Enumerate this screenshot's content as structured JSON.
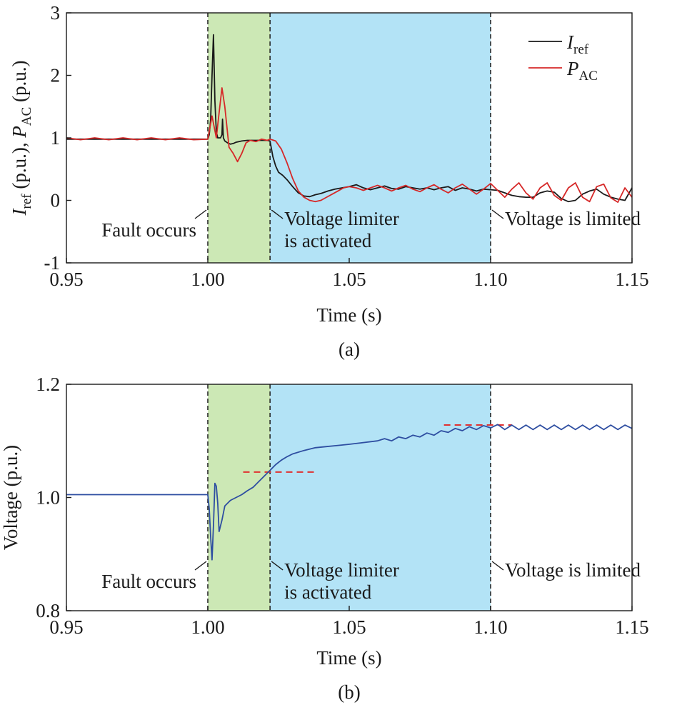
{
  "chart_data": [
    {
      "type": "line",
      "panel_label": "(a)",
      "xlabel": "Time (s)",
      "ylabel_parts": [
        {
          "text": "I",
          "style": "italic"
        },
        {
          "text": "ref",
          "style": "sub"
        },
        {
          "text": " (p.u.), ",
          "style": "normal"
        },
        {
          "text": "P",
          "style": "italic"
        },
        {
          "text": "AC",
          "style": "sub"
        },
        {
          "text": " (p.u.)",
          "style": "normal"
        }
      ],
      "xlim": [
        0.95,
        1.15
      ],
      "ylim": [
        -1,
        3
      ],
      "xticks": [
        "0.95",
        "1.00",
        "1.05",
        "1.10",
        "1.15"
      ],
      "yticks": [
        "-1",
        "0",
        "1",
        "2",
        "3"
      ],
      "xtick_values": [
        0.95,
        1.0,
        1.05,
        1.1,
        1.15
      ],
      "ytick_values": [
        -1,
        0,
        1,
        2,
        3
      ],
      "grid": false,
      "legend_position": "top-right",
      "regions": [
        {
          "x_start": 1.0,
          "x_end": 1.022,
          "color": "#cce8b5"
        },
        {
          "x_start": 1.022,
          "x_end": 1.1,
          "color": "#b3e3f6"
        }
      ],
      "vlines": [
        1.0,
        1.022,
        1.1
      ],
      "annotations": [
        {
          "lines": [
            "Fault occurs"
          ],
          "x": 1.0,
          "side": "left"
        },
        {
          "lines": [
            "Voltage limiter",
            "is activated"
          ],
          "x": 1.022,
          "side": "right"
        },
        {
          "lines": [
            "Voltage is limited"
          ],
          "x": 1.1,
          "side": "right"
        }
      ],
      "series": [
        {
          "legend": {
            "main": "I",
            "sub": "ref"
          },
          "color": "#1a1a1a",
          "x": [
            0.95,
            0.96,
            0.97,
            0.98,
            0.99,
            0.9995,
            1.0,
            1.0005,
            1.001,
            1.0015,
            1.002,
            1.0025,
            1.003,
            1.0035,
            1.004,
            1.0045,
            1.005,
            1.0052,
            1.0055,
            1.006,
            1.007,
            1.008,
            1.009,
            1.01,
            1.012,
            1.014,
            1.016,
            1.018,
            1.02,
            1.021,
            1.022,
            1.023,
            1.024,
            1.025,
            1.0265,
            1.028,
            1.03,
            1.032,
            1.034,
            1.036,
            1.038,
            1.04,
            1.0425,
            1.045,
            1.0475,
            1.05,
            1.0525,
            1.055,
            1.0575,
            1.06,
            1.0625,
            1.065,
            1.0675,
            1.07,
            1.0725,
            1.075,
            1.0775,
            1.08,
            1.0825,
            1.085,
            1.0875,
            1.09,
            1.0925,
            1.095,
            1.0975,
            1.1,
            1.1025,
            1.105,
            1.1075,
            1.11,
            1.1125,
            1.115,
            1.1175,
            1.12,
            1.1225,
            1.125,
            1.1275,
            1.13,
            1.1325,
            1.135,
            1.1375,
            1.14,
            1.1425,
            1.145,
            1.1475,
            1.15
          ],
          "values": [
            0.98,
            0.98,
            0.98,
            0.98,
            0.98,
            0.98,
            0.98,
            1.05,
            1.3,
            2.0,
            2.65,
            1.6,
            1.1,
            1.0,
            1.0,
            1.0,
            1.05,
            1.3,
            1.0,
            0.95,
            0.92,
            0.9,
            0.91,
            0.93,
            0.95,
            0.96,
            0.96,
            0.96,
            0.96,
            0.96,
            0.95,
            0.7,
            0.55,
            0.45,
            0.4,
            0.33,
            0.22,
            0.12,
            0.07,
            0.06,
            0.09,
            0.11,
            0.15,
            0.18,
            0.2,
            0.22,
            0.25,
            0.2,
            0.17,
            0.2,
            0.23,
            0.19,
            0.18,
            0.22,
            0.2,
            0.18,
            0.2,
            0.17,
            0.2,
            0.22,
            0.16,
            0.2,
            0.18,
            0.15,
            0.18,
            0.17,
            0.16,
            0.12,
            0.08,
            0.06,
            0.05,
            0.05,
            0.12,
            0.15,
            0.13,
            0.03,
            -0.02,
            0.0,
            0.1,
            0.15,
            0.18,
            0.1,
            0.05,
            0.02,
            0.0,
            0.2
          ]
        },
        {
          "legend": {
            "main": "P",
            "sub": "AC"
          },
          "color": "#d62828",
          "x": [
            0.95,
            0.955,
            0.96,
            0.965,
            0.97,
            0.975,
            0.98,
            0.985,
            0.99,
            0.995,
            1.0,
            1.0015,
            1.003,
            1.004,
            1.005,
            1.006,
            1.0075,
            1.009,
            1.0105,
            1.012,
            1.0135,
            1.015,
            1.017,
            1.019,
            1.021,
            1.022,
            1.024,
            1.026,
            1.028,
            1.03,
            1.032,
            1.034,
            1.036,
            1.038,
            1.04,
            1.042,
            1.044,
            1.046,
            1.048,
            1.05,
            1.0525,
            1.055,
            1.0575,
            1.06,
            1.0625,
            1.065,
            1.0675,
            1.07,
            1.0725,
            1.075,
            1.0775,
            1.08,
            1.0825,
            1.085,
            1.0875,
            1.09,
            1.0925,
            1.095,
            1.0975,
            1.1,
            1.1025,
            1.105,
            1.1075,
            1.11,
            1.1125,
            1.115,
            1.1175,
            1.12,
            1.1225,
            1.125,
            1.1275,
            1.13,
            1.1325,
            1.135,
            1.1375,
            1.14,
            1.1425,
            1.145,
            1.1475,
            1.15
          ],
          "values": [
            1.0,
            0.97,
            1.0,
            0.97,
            1.0,
            0.97,
            1.0,
            0.97,
            1.0,
            0.97,
            0.98,
            1.35,
            1.0,
            1.4,
            1.8,
            1.5,
            0.85,
            0.75,
            0.62,
            0.75,
            0.92,
            0.96,
            0.94,
            0.98,
            0.96,
            0.98,
            0.95,
            0.82,
            0.6,
            0.35,
            0.15,
            0.05,
            0.0,
            -0.02,
            0.0,
            0.05,
            0.1,
            0.15,
            0.2,
            0.22,
            0.2,
            0.16,
            0.2,
            0.24,
            0.2,
            0.15,
            0.2,
            0.24,
            0.18,
            0.14,
            0.2,
            0.25,
            0.18,
            0.12,
            0.2,
            0.26,
            0.18,
            0.1,
            0.18,
            0.27,
            0.16,
            0.05,
            0.18,
            0.28,
            0.12,
            0.02,
            0.2,
            0.28,
            0.08,
            0.0,
            0.2,
            0.28,
            0.05,
            -0.02,
            0.22,
            0.26,
            0.04,
            -0.03,
            0.2,
            0.05
          ]
        }
      ]
    },
    {
      "type": "line",
      "panel_label": "(b)",
      "xlabel": "Time (s)",
      "ylabel_parts": [
        {
          "text": "Voltage (p.u.)",
          "style": "normal"
        }
      ],
      "xlim": [
        0.95,
        1.15
      ],
      "ylim": [
        0.8,
        1.2
      ],
      "xticks": [
        "0.95",
        "1.00",
        "1.05",
        "1.10",
        "1.15"
      ],
      "yticks": [
        "0.8",
        "1.0",
        "1.2"
      ],
      "xtick_values": [
        0.95,
        1.0,
        1.05,
        1.1,
        1.15
      ],
      "ytick_values": [
        0.8,
        1.0,
        1.2
      ],
      "grid": false,
      "regions": [
        {
          "x_start": 1.0,
          "x_end": 1.022,
          "color": "#cce8b5"
        },
        {
          "x_start": 1.022,
          "x_end": 1.1,
          "color": "#b3e3f6"
        }
      ],
      "vlines": [
        1.0,
        1.022,
        1.1
      ],
      "reference_lines": [
        {
          "x_start": 1.0125,
          "x_end": 1.0385,
          "y": 1.045,
          "color": "#e03030"
        },
        {
          "x_start": 1.0835,
          "x_end": 1.1075,
          "y": 1.128,
          "color": "#e03030"
        }
      ],
      "annotations": [
        {
          "lines": [
            "Fault occurs"
          ],
          "x": 1.0,
          "side": "left"
        },
        {
          "lines": [
            "Voltage limiter",
            "is activated"
          ],
          "x": 1.022,
          "side": "right"
        },
        {
          "lines": [
            "Voltage is limited"
          ],
          "x": 1.1,
          "side": "right"
        }
      ],
      "series": [
        {
          "color": "#2e4ea1",
          "x": [
            0.95,
            0.96,
            0.97,
            0.98,
            0.99,
            0.998,
            1.0,
            1.0005,
            1.001,
            1.0015,
            1.002,
            1.0025,
            1.003,
            1.0035,
            1.004,
            1.005,
            1.006,
            1.008,
            1.01,
            1.012,
            1.014,
            1.016,
            1.018,
            1.02,
            1.022,
            1.024,
            1.026,
            1.028,
            1.03,
            1.034,
            1.038,
            1.042,
            1.046,
            1.05,
            1.055,
            1.06,
            1.0625,
            1.065,
            1.0675,
            1.07,
            1.0725,
            1.075,
            1.0775,
            1.08,
            1.0825,
            1.085,
            1.0875,
            1.09,
            1.0925,
            1.095,
            1.0975,
            1.1,
            1.1025,
            1.105,
            1.1075,
            1.11,
            1.1125,
            1.115,
            1.1175,
            1.12,
            1.1225,
            1.125,
            1.1275,
            1.13,
            1.1325,
            1.135,
            1.1375,
            1.14,
            1.1425,
            1.145,
            1.1475,
            1.15
          ],
          "values": [
            1.005,
            1.005,
            1.005,
            1.005,
            1.005,
            1.005,
            1.005,
            0.98,
            0.93,
            0.89,
            0.95,
            1.025,
            1.02,
            0.99,
            0.94,
            0.96,
            0.985,
            0.995,
            1.0,
            1.005,
            1.012,
            1.018,
            1.028,
            1.038,
            1.048,
            1.058,
            1.066,
            1.072,
            1.077,
            1.083,
            1.088,
            1.09,
            1.092,
            1.094,
            1.097,
            1.1,
            1.104,
            1.1,
            1.107,
            1.104,
            1.11,
            1.107,
            1.114,
            1.11,
            1.118,
            1.115,
            1.122,
            1.118,
            1.125,
            1.12,
            1.127,
            1.123,
            1.129,
            1.12,
            1.128,
            1.12,
            1.128,
            1.12,
            1.128,
            1.12,
            1.128,
            1.12,
            1.128,
            1.12,
            1.128,
            1.12,
            1.128,
            1.12,
            1.128,
            1.12,
            1.128,
            1.122
          ]
        }
      ]
    }
  ]
}
